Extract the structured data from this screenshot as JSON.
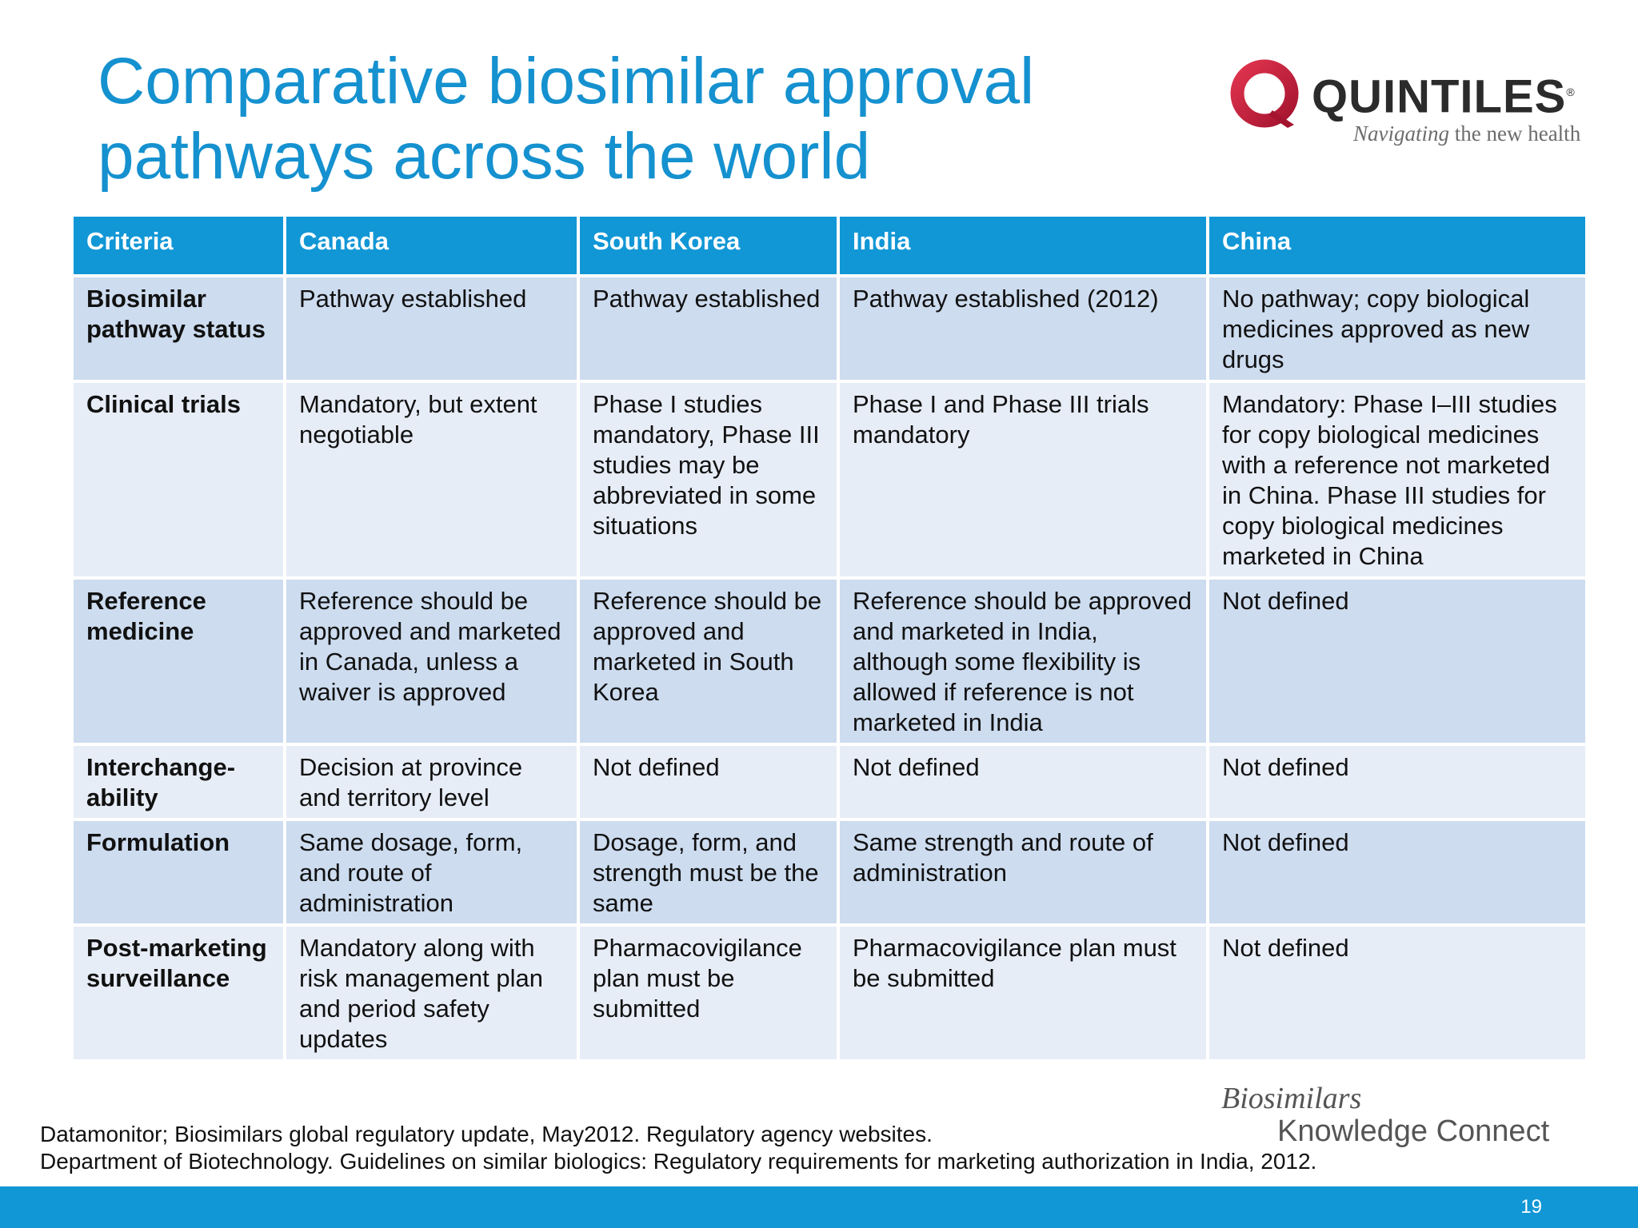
{
  "slide": {
    "title_line1": "Comparative biosimilar approval",
    "title_line2": "pathways across the world",
    "page_number": "19"
  },
  "logo": {
    "name": "QUINTILES",
    "reg": "®",
    "tagline_italic": "Navigating",
    "tagline_rest": " the new health"
  },
  "table": {
    "headers": [
      "Criteria",
      "Canada",
      "South Korea",
      "India",
      "China"
    ],
    "rows": [
      {
        "criteria": "Biosimilar pathway status",
        "canada": "Pathway established",
        "south_korea": "Pathway established",
        "india": "Pathway established (2012)",
        "china": "No pathway; copy biological medicines approved as new drugs"
      },
      {
        "criteria": "Clinical trials",
        "canada": "Mandatory, but extent negotiable",
        "south_korea": "Phase I studies mandatory, Phase III studies may be abbreviated in some situations",
        "india": "Phase I and Phase III trials mandatory",
        "china": "Mandatory: Phase I–III studies for copy biological medicines with a reference not marketed in China. Phase III studies for copy biological medicines marketed in China"
      },
      {
        "criteria": "Reference medicine",
        "canada": "Reference should be approved and marketed  in Canada, unless a waiver is approved",
        "south_korea": "Reference should be approved and marketed in South Korea",
        "india": "Reference should be approved and marketed in India, although some flexibility is allowed if reference is not marketed in India",
        "china": "Not defined"
      },
      {
        "criteria": "Interchange-ability",
        "canada": "Decision at province and territory level",
        "south_korea": "Not defined",
        "india": "Not defined",
        "china": "Not defined"
      },
      {
        "criteria": "Formulation",
        "canada": "Same dosage, form, and route of administration",
        "south_korea": "Dosage, form, and strength must be the same",
        "india": "Same strength and route of administration",
        "china": "Not defined"
      },
      {
        "criteria": "Post-marketing surveillance",
        "canada": "Mandatory along with risk management plan and period safety updates",
        "south_korea": "Pharmacovigilance plan must be submitted",
        "india": "Pharmacovigilance plan must be submitted",
        "china": "Not defined"
      }
    ]
  },
  "references": {
    "line1": "Datamonitor; Biosimilars global regulatory update, May2012. Regulatory agency websites.",
    "line2": "Department of Biotechnology. Guidelines on similar biologics: Regulatory requirements for marketing authorization in India, 2012."
  },
  "bkc_logo": {
    "line1": "Biosimilars",
    "line2": "Knowledge Connect"
  },
  "colors": {
    "title": "#1591cf",
    "header_bg": "#1197d6",
    "row_dark": "#cddcef",
    "row_light": "#e7edf7",
    "logo_ring": "#c8213f"
  }
}
